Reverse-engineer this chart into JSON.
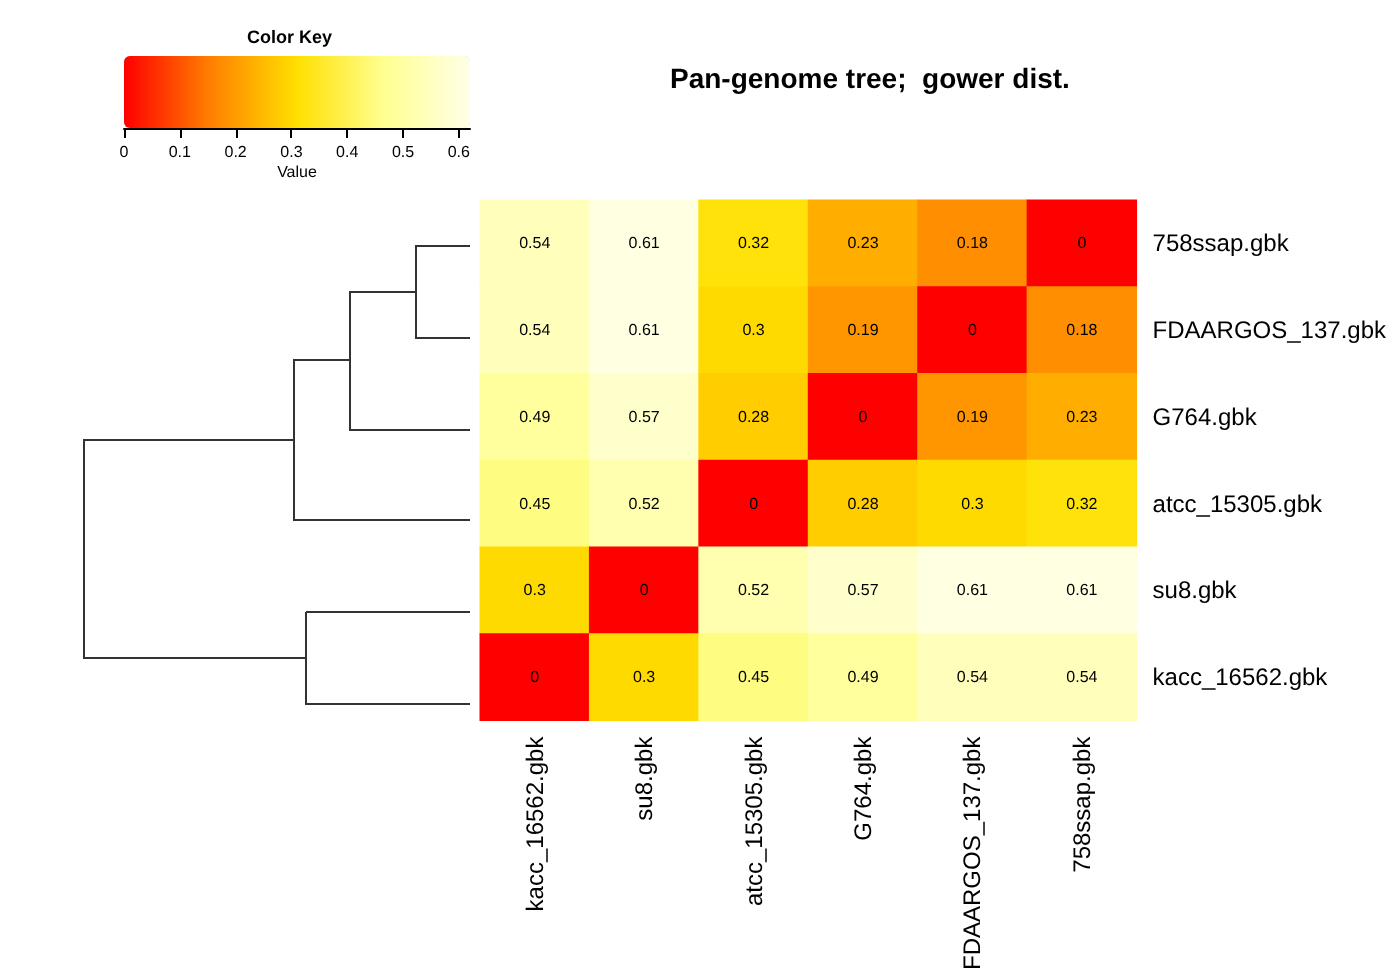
{
  "chart_data": {
    "type": "heatmap",
    "title": "Pan-genome tree;  gower dist.",
    "clabel": "Value",
    "annotations": [
      "Color Key"
    ],
    "categories": [
      "kacc_16562.gbk",
      "su8.gbk",
      "atcc_15305.gbk",
      "G764.gbk",
      "FDAARGOS_137.gbk",
      "758ssap.gbk"
    ],
    "y_categories": [
      "758ssap.gbk",
      "FDAARGOS_137.gbk",
      "G764.gbk",
      "atcc_15305.gbk",
      "su8.gbk",
      "kacc_16562.gbk"
    ],
    "cells": [
      [
        0.54,
        0.61,
        0.32,
        0.23,
        0.18,
        0
      ],
      [
        0.54,
        0.61,
        0.3,
        0.19,
        0,
        0.18
      ],
      [
        0.49,
        0.57,
        0.28,
        0,
        0.19,
        0.23
      ],
      [
        0.45,
        0.52,
        0,
        0.28,
        0.3,
        0.32
      ],
      [
        0.3,
        0,
        0.52,
        0.57,
        0.61,
        0.61
      ],
      [
        0,
        0.3,
        0.45,
        0.49,
        0.54,
        0.54
      ]
    ],
    "data_labels": true,
    "clim": [
      0,
      0.62
    ],
    "cticks": [
      0,
      0.1,
      0.2,
      0.3,
      0.4,
      0.5,
      0.6
    ]
  }
}
